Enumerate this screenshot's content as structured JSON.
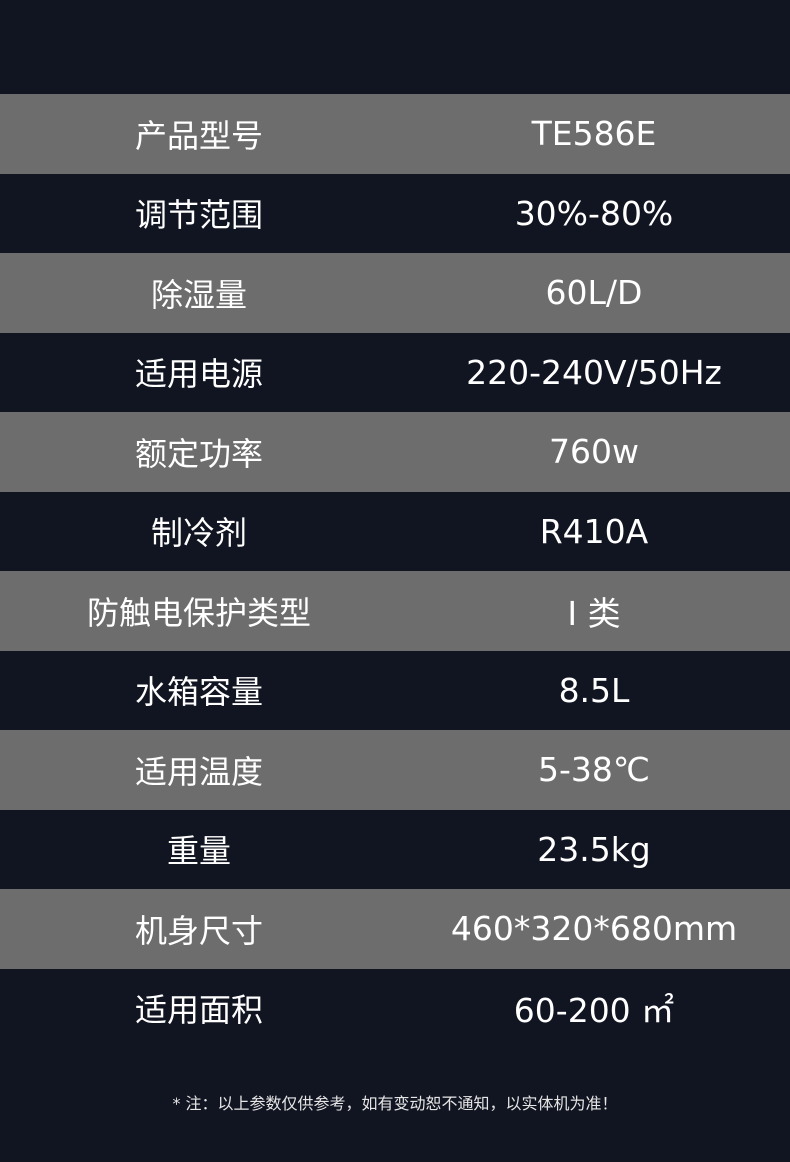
{
  "specs": [
    {
      "label": "产品型号",
      "value": "TE586E"
    },
    {
      "label": "调节范围",
      "value": "30%-80%"
    },
    {
      "label": "除湿量",
      "value": "60L/D"
    },
    {
      "label": "适用电源",
      "value": "220-240V/50Hz"
    },
    {
      "label": "额定功率",
      "value": "760w"
    },
    {
      "label": "制冷剂",
      "value": "R410A"
    },
    {
      "label": "防触电保护类型",
      "value": "I 类"
    },
    {
      "label": "水箱容量",
      "value": "8.5L"
    },
    {
      "label": "适用温度",
      "value": "5-38℃"
    },
    {
      "label": "重量",
      "value": "23.5kg"
    },
    {
      "label": "机身尺寸",
      "value": "460*320*680mm"
    },
    {
      "label": "适用面积",
      "value": "60-200 ㎡"
    }
  ],
  "note": "* 注：以上参数仅供参考，如有变动恕不通知，以实体机为准！",
  "colors": {
    "background": "#111421",
    "row_alt": "#6d6d6d"
  }
}
